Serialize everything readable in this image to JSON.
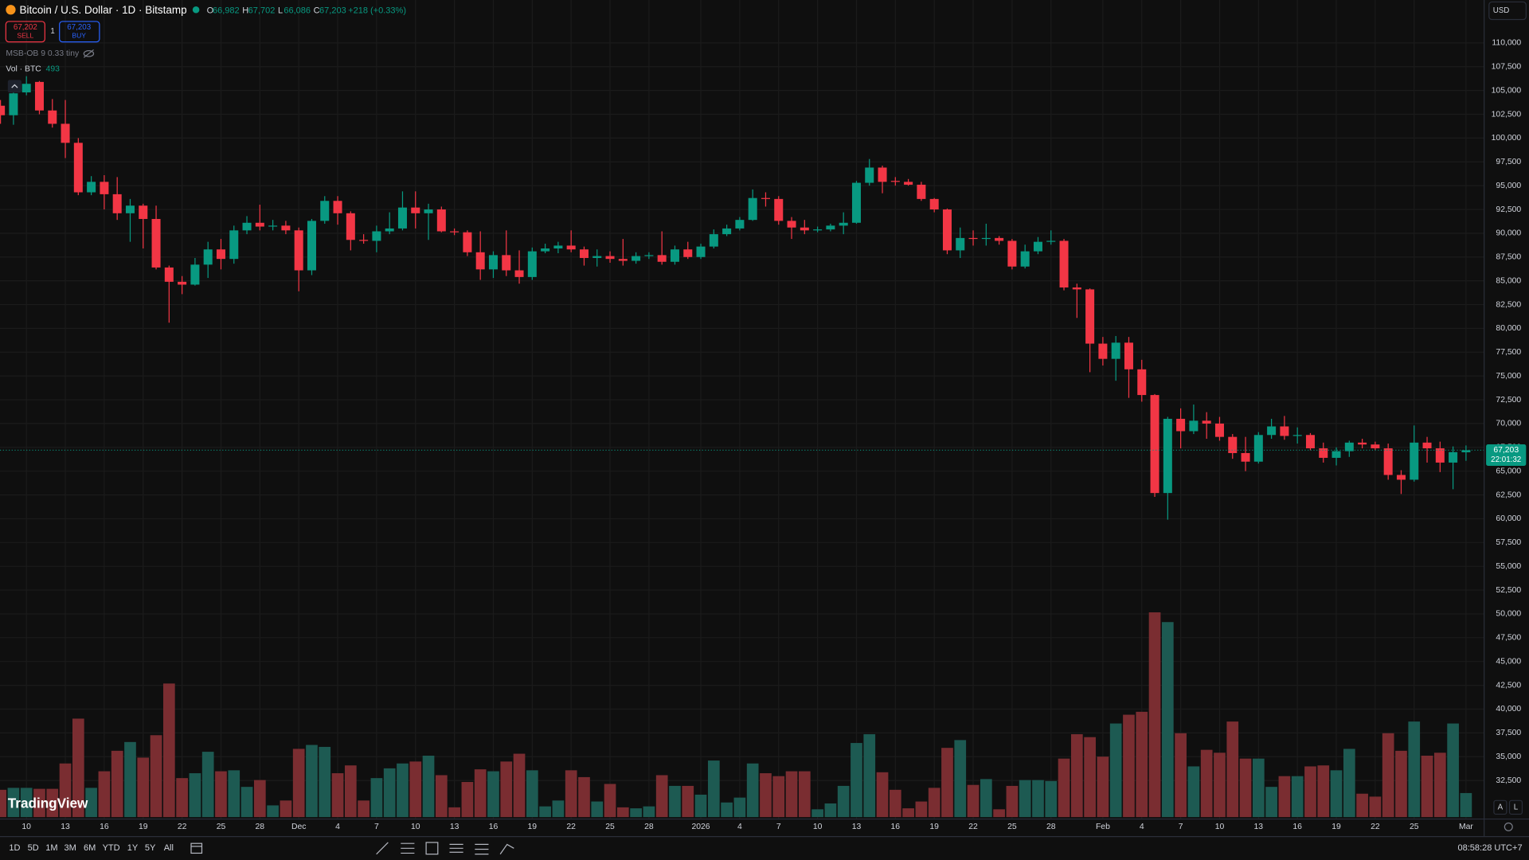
{
  "header": {
    "symbol": "Bitcoin / U.S. Dollar · 1D · Bitstamp",
    "legend": [
      {
        "key": "O",
        "value": "66,982"
      },
      {
        "key": "H",
        "value": "67,702"
      },
      {
        "key": "L",
        "value": "66,086"
      },
      {
        "key": "C",
        "value": "67,203"
      }
    ],
    "change": "+218 (+0.33%)",
    "sell_price": "67,202",
    "sell": "SELL",
    "spread": "1",
    "buy_price": "67,203",
    "buy": "BUY",
    "indicator": "MSB-OB 9 0.33 tiny",
    "volume_label": "Vol · BTC",
    "currency": "USD"
  },
  "price_tag": {
    "price": "67,203",
    "countdown": "22:01:32"
  },
  "toolbar": {
    "ranges": [
      "1D",
      "5D",
      "1M",
      "3M",
      "6M",
      "YTD",
      "1Y",
      "5Y",
      "All"
    ],
    "clock": "08:58:28 UTC+7",
    "logo": "TradingView",
    "buttons": [
      "A",
      "L"
    ]
  },
  "chart_data": {
    "type": "candlestick",
    "x": [
      "Nov 8",
      "Nov 9",
      "Nov 10",
      "Nov 11",
      "Nov 12",
      "Nov 13",
      "Nov 14",
      "Nov 15",
      "Nov 16",
      "Nov 17",
      "Nov 18",
      "Nov 19",
      "Nov 20",
      "Nov 21",
      "Nov 22",
      "Nov 23",
      "Nov 24",
      "Nov 25",
      "Nov 26",
      "Nov 27",
      "Nov 28",
      "Nov 29",
      "Nov 30",
      "Dec 1",
      "Dec 2",
      "Dec 3",
      "Dec 4",
      "Dec 5",
      "Dec 6",
      "Dec 7",
      "Dec 8",
      "Dec 9",
      "Dec 10",
      "Dec 11",
      "Dec 12",
      "Dec 13",
      "Dec 14",
      "Dec 15",
      "Dec 16",
      "Dec 17",
      "Dec 18",
      "Dec 19",
      "Dec 20",
      "Dec 21",
      "Dec 22",
      "Dec 23",
      "Dec 24",
      "Dec 25",
      "Dec 26",
      "Dec 27",
      "Dec 28",
      "Dec 29",
      "Dec 30",
      "Dec 31",
      "Jan 1",
      "Jan 2",
      "Jan 3",
      "Jan 4",
      "Jan 5",
      "Jan 6",
      "Jan 7",
      "Jan 8",
      "Jan 9",
      "Jan 10",
      "Jan 11",
      "Jan 12",
      "Jan 13",
      "Jan 14",
      "Jan 15",
      "Jan 16",
      "Jan 17",
      "Jan 18",
      "Jan 19",
      "Jan 20",
      "Jan 21",
      "Jan 22",
      "Jan 23",
      "Jan 24",
      "Jan 25",
      "Jan 26",
      "Jan 27",
      "Jan 28",
      "Jan 29",
      "Jan 30",
      "Jan 31",
      "Feb 1",
      "Feb 2",
      "Feb 3",
      "Feb 4",
      "Feb 5",
      "Feb 6",
      "Feb 7",
      "Feb 8",
      "Feb 9",
      "Feb 10",
      "Feb 11",
      "Feb 12",
      "Feb 13",
      "Feb 14",
      "Feb 15",
      "Feb 16",
      "Feb 17",
      "Feb 18",
      "Feb 19",
      "Feb 20",
      "Feb 21",
      "Feb 22",
      "Feb 23",
      "Feb 24",
      "Feb 25",
      "Feb 26",
      "Feb 27",
      "Feb 28",
      "Mar 1"
    ],
    "open": [
      103400,
      102400,
      104800,
      105900,
      102900,
      101500,
      99500,
      94300,
      95400,
      94100,
      92100,
      92900,
      91500,
      86400,
      84900,
      84600,
      86700,
      88300,
      87300,
      90300,
      91100,
      90700,
      90800,
      90300,
      86100,
      91300,
      93400,
      92100,
      89300,
      89200,
      90200,
      90500,
      92700,
      92100,
      92500,
      90200,
      90100,
      88000,
      86200,
      87700,
      86100,
      85400,
      88100,
      88400,
      88700,
      88300,
      87400,
      87600,
      87300,
      87100,
      87600,
      87700,
      87000,
      88300,
      87500,
      88600,
      89900,
      90500,
      91400,
      93700,
      93600,
      91300,
      90600,
      90300,
      90400,
      90800,
      91100,
      95300,
      96900,
      95500,
      95400,
      95100,
      93600,
      92500,
      88200,
      89500,
      89400,
      89500,
      89200,
      86500,
      88100,
      89100,
      89200,
      84300,
      84100,
      78400,
      76800,
      78500,
      75700,
      73000,
      62700,
      70500,
      69200,
      70300,
      70000,
      68600,
      66900,
      66000,
      68800,
      69700,
      68700,
      68800,
      67400,
      66400,
      67100,
      68000,
      67800,
      67400,
      64600,
      64100,
      68000,
      67400,
      65900,
      66982
    ],
    "high": [
      104000,
      105900,
      106500,
      106000,
      104100,
      104000,
      100000,
      96000,
      96100,
      95900,
      93600,
      93100,
      92900,
      86600,
      85500,
      87400,
      89100,
      89400,
      90800,
      91800,
      93000,
      91400,
      91300,
      90600,
      91500,
      93900,
      93900,
      92300,
      89900,
      90800,
      92200,
      94400,
      94400,
      93100,
      92800,
      90500,
      90300,
      90200,
      88100,
      90300,
      88200,
      88500,
      88900,
      89100,
      90300,
      88600,
      88300,
      88100,
      89400,
      88000,
      88000,
      90200,
      88700,
      89100,
      88900,
      90400,
      90900,
      91700,
      94600,
      94300,
      93900,
      91700,
      91400,
      90700,
      91000,
      92200,
      95500,
      97800,
      97100,
      95900,
      95700,
      95400,
      93700,
      92600,
      90600,
      90300,
      91000,
      89700,
      89400,
      88800,
      89600,
      90300,
      89400,
      84700,
      84200,
      79100,
      79200,
      79100,
      76700,
      73100,
      70700,
      71600,
      72000,
      71200,
      70700,
      68900,
      68600,
      69100,
      70500,
      70800,
      69600,
      69000,
      68000,
      67500,
      68200,
      68400,
      68100,
      67900,
      65100,
      69800,
      68600,
      68100,
      67600,
      67702
    ],
    "low": [
      101500,
      101400,
      104500,
      102500,
      101100,
      97900,
      94000,
      94000,
      92500,
      91400,
      89100,
      88400,
      86200,
      80600,
      83600,
      84500,
      85300,
      86200,
      86800,
      89900,
      90300,
      90300,
      89900,
      83900,
      85600,
      91000,
      90900,
      88200,
      88900,
      88000,
      89900,
      90300,
      90500,
      89300,
      90100,
      89800,
      87600,
      85100,
      85300,
      85500,
      84700,
      85100,
      87900,
      87900,
      88000,
      86600,
      86500,
      86900,
      86600,
      86800,
      87300,
      86700,
      86700,
      87300,
      87300,
      88400,
      89700,
      90300,
      91300,
      92800,
      90900,
      89400,
      89900,
      90100,
      90200,
      89900,
      91000,
      95000,
      94200,
      95000,
      95000,
      93400,
      92200,
      87800,
      87400,
      88700,
      88700,
      88800,
      86200,
      86300,
      87800,
      88800,
      84000,
      81100,
      75400,
      76100,
      74500,
      72700,
      72300,
      62300,
      59900,
      67400,
      68900,
      68400,
      68200,
      66300,
      65000,
      65800,
      68400,
      68300,
      67900,
      67200,
      65900,
      65600,
      66500,
      67400,
      67200,
      64100,
      62600,
      63900,
      65900,
      64900,
      63100,
      66086
    ],
    "close": [
      102400,
      104700,
      105700,
      102900,
      101500,
      99500,
      94300,
      95400,
      94100,
      92100,
      92900,
      91500,
      86400,
      84900,
      84600,
      86700,
      88300,
      87300,
      90300,
      91100,
      90700,
      90800,
      90300,
      86100,
      91300,
      93400,
      92100,
      89300,
      89200,
      90200,
      90500,
      92700,
      92100,
      92500,
      90200,
      90100,
      88000,
      86200,
      87700,
      86100,
      85400,
      88100,
      88400,
      88700,
      88300,
      87400,
      87600,
      87300,
      87100,
      87600,
      87700,
      87000,
      88300,
      87500,
      88600,
      89900,
      90500,
      91400,
      93700,
      93600,
      91300,
      90600,
      90300,
      90400,
      90800,
      91100,
      95300,
      96900,
      95400,
      95400,
      95100,
      93600,
      92500,
      88200,
      89500,
      89400,
      89500,
      89200,
      86500,
      88100,
      89100,
      89200,
      84300,
      84100,
      78400,
      76800,
      78500,
      75700,
      73000,
      62700,
      70500,
      69200,
      70300,
      70000,
      68600,
      66900,
      66000,
      68800,
      69700,
      68700,
      68800,
      67400,
      66400,
      67100,
      68000,
      67800,
      67400,
      64600,
      64100,
      68000,
      67400,
      65900,
      67000,
      67203
    ],
    "volume": [
      560,
      600,
      600,
      580,
      580,
      1100,
      2020,
      600,
      940,
      1360,
      1540,
      1220,
      1680,
      2740,
      800,
      900,
      1340,
      940,
      960,
      620,
      760,
      240,
      340,
      1400,
      1480,
      1440,
      900,
      1060,
      340,
      800,
      1000,
      1100,
      1140,
      1260,
      860,
      200,
      720,
      980,
      940,
      1140,
      1300,
      960,
      220,
      340,
      960,
      820,
      320,
      680,
      200,
      180,
      220,
      860,
      640,
      640,
      460,
      1160,
      300,
      400,
      1100,
      900,
      840,
      940,
      940,
      160,
      280,
      640,
      1520,
      1700,
      920,
      560,
      180,
      320,
      600,
      1420,
      1580,
      660,
      780,
      160,
      640,
      760,
      760,
      740,
      1200,
      1700,
      1640,
      1240,
      1920,
      2100,
      2160,
      4200,
      4000,
      1720,
      1040,
      1380,
      1320,
      1960,
      1200,
      1200,
      620,
      840,
      840,
      1040,
      1060,
      960,
      1400,
      480,
      420,
      1720,
      1360,
      1960,
      1260,
      1320,
      1920,
      493
    ],
    "up_color": "#089981",
    "down_color": "#f23645",
    "volume_up_color": "#1d5a52",
    "volume_down_color": "#7a2d31",
    "ylim": [
      28443,
      112664
    ],
    "y2lim": [
      0,
      4200
    ],
    "grid": true,
    "yticks": [
      {
        "value": 110000,
        "label": "110,000"
      },
      {
        "value": 107500,
        "label": "107,500"
      },
      {
        "value": 105000,
        "label": "105,000"
      },
      {
        "value": 102500,
        "label": "102,500"
      },
      {
        "value": 100000,
        "label": "100,000"
      },
      {
        "value": 97500,
        "label": "97,500"
      },
      {
        "value": 95000,
        "label": "95,000"
      },
      {
        "value": 92500,
        "label": "92,500"
      },
      {
        "value": 90000,
        "label": "90,000"
      },
      {
        "value": 87500,
        "label": "87,500"
      },
      {
        "value": 85000,
        "label": "85,000"
      },
      {
        "value": 82500,
        "label": "82,500"
      },
      {
        "value": 80000,
        "label": "80,000"
      },
      {
        "value": 77500,
        "label": "77,500"
      },
      {
        "value": 75000,
        "label": "75,000"
      },
      {
        "value": 72500,
        "label": "72,500"
      },
      {
        "value": 70000,
        "label": "70,000"
      },
      {
        "value": 67500,
        "label": "67,500"
      },
      {
        "value": 65000,
        "label": "65,000"
      },
      {
        "value": 62500,
        "label": "62,500"
      },
      {
        "value": 60000,
        "label": "60,000"
      },
      {
        "value": 57500,
        "label": "57,500"
      },
      {
        "value": 55000,
        "label": "55,000"
      },
      {
        "value": 52500,
        "label": "52,500"
      },
      {
        "value": 50000,
        "label": "50,000"
      },
      {
        "value": 47500,
        "label": "47,500"
      },
      {
        "value": 45000,
        "label": "45,000"
      },
      {
        "value": 42500,
        "label": "42,500"
      },
      {
        "value": 40000,
        "label": "40,000"
      },
      {
        "value": 37500,
        "label": "37,500"
      },
      {
        "value": 35000,
        "label": "35,000"
      },
      {
        "value": 32500,
        "label": "32,500"
      }
    ],
    "xticks": [
      {
        "value": "Nov 10",
        "label": "10"
      },
      {
        "value": "Nov 13",
        "label": "13"
      },
      {
        "value": "Nov 16",
        "label": "16"
      },
      {
        "value": "Nov 19",
        "label": "19"
      },
      {
        "value": "Nov 22",
        "label": "22"
      },
      {
        "value": "Nov 25",
        "label": "25"
      },
      {
        "value": "Nov 28",
        "label": "28"
      },
      {
        "value": "Dec 1",
        "label": "Dec"
      },
      {
        "value": "Dec 4",
        "label": "4"
      },
      {
        "value": "Dec 7",
        "label": "7"
      },
      {
        "value": "Dec 10",
        "label": "10"
      },
      {
        "value": "Dec 13",
        "label": "13"
      },
      {
        "value": "Dec 16",
        "label": "16"
      },
      {
        "value": "Dec 19",
        "label": "19"
      },
      {
        "value": "Dec 22",
        "label": "22"
      },
      {
        "value": "Dec 25",
        "label": "25"
      },
      {
        "value": "Dec 28",
        "label": "28"
      },
      {
        "value": "Jan 1",
        "label": "2026"
      },
      {
        "value": "Jan 4",
        "label": "4"
      },
      {
        "value": "Jan 7",
        "label": "7"
      },
      {
        "value": "Jan 10",
        "label": "10"
      },
      {
        "value": "Jan 13",
        "label": "13"
      },
      {
        "value": "Jan 16",
        "label": "16"
      },
      {
        "value": "Jan 19",
        "label": "19"
      },
      {
        "value": "Jan 22",
        "label": "22"
      },
      {
        "value": "Jan 25",
        "label": "25"
      },
      {
        "value": "Jan 28",
        "label": "28"
      },
      {
        "value": "Feb 1",
        "label": "Feb"
      },
      {
        "value": "Feb 4",
        "label": "4"
      },
      {
        "value": "Feb 7",
        "label": "7"
      },
      {
        "value": "Feb 10",
        "label": "10"
      },
      {
        "value": "Feb 13",
        "label": "13"
      },
      {
        "value": "Feb 16",
        "label": "16"
      },
      {
        "value": "Feb 19",
        "label": "19"
      },
      {
        "value": "Feb 22",
        "label": "22"
      },
      {
        "value": "Feb 25",
        "label": "25"
      },
      {
        "value": "Mar 1",
        "label": "Mar"
      }
    ]
  }
}
